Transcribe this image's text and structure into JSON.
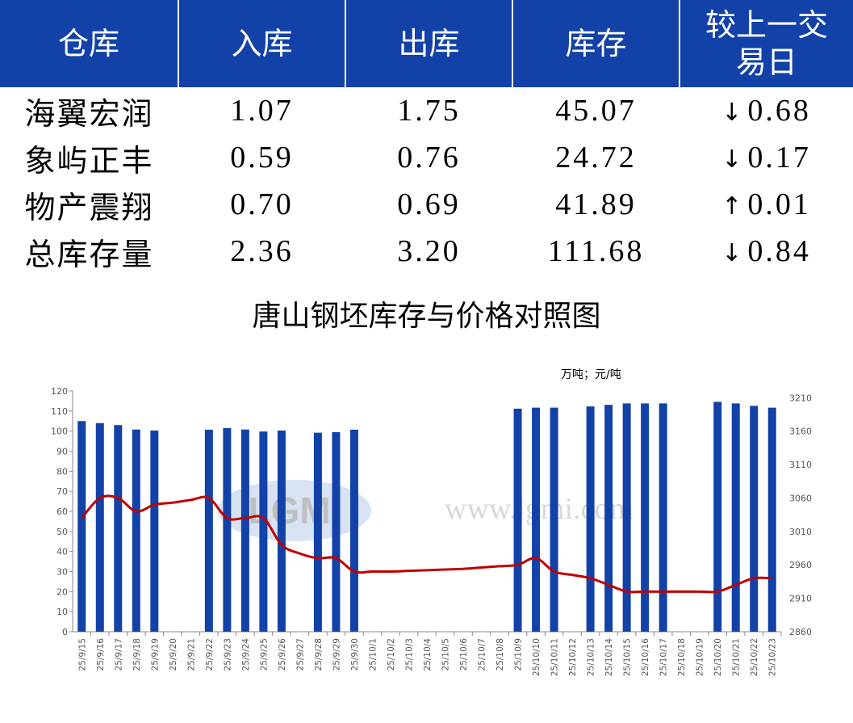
{
  "table": {
    "headers": [
      "仓库",
      "入库",
      "出库",
      "库存",
      "较上一交易日"
    ],
    "rows": [
      {
        "name": "海翼宏润",
        "in": "1.07",
        "out": "1.75",
        "stock": "45.07",
        "dir": "down",
        "arrow": "↓",
        "change": "0.68"
      },
      {
        "name": "象屿正丰",
        "in": "0.59",
        "out": "0.76",
        "stock": "24.72",
        "dir": "down",
        "arrow": "↓",
        "change": "0.17"
      },
      {
        "name": "物产震翔",
        "in": "0.70",
        "out": "0.69",
        "stock": "41.89",
        "dir": "up",
        "arrow": "↑",
        "change": "0.01"
      },
      {
        "name": "总库存量",
        "in": "2.36",
        "out": "3.20",
        "stock": "111.68",
        "dir": "down",
        "arrow": "↓",
        "change": "0.84"
      }
    ]
  },
  "colors": {
    "header_bg": "#1242a8",
    "bar": "#1242a8",
    "line": "#c00000",
    "up": "#ee0000",
    "down": "#0a7a0a"
  },
  "chart_data": {
    "type": "bar+line",
    "title": "唐山钢坯库存与价格对照图",
    "unit_label": "万吨；元/吨",
    "watermark": "www.lgmi.com",
    "categories": [
      "25/9/15",
      "25/9/16",
      "25/9/17",
      "25/9/18",
      "25/9/19",
      "25/9/20",
      "25/9/21",
      "25/9/22",
      "25/9/23",
      "25/9/24",
      "25/9/25",
      "25/9/26",
      "25/9/27",
      "25/9/28",
      "25/9/29",
      "25/9/30",
      "25/10/1",
      "25/10/2",
      "25/10/3",
      "25/10/4",
      "25/10/5",
      "25/10/6",
      "25/10/7",
      "25/10/8",
      "25/10/9",
      "25/10/10",
      "25/10/11",
      "25/10/12",
      "25/10/13",
      "25/10/14",
      "25/10/15",
      "25/10/16",
      "25/10/17",
      "25/10/18",
      "25/10/19",
      "25/10/20",
      "25/10/21",
      "25/10/22",
      "25/10/23"
    ],
    "series": [
      {
        "kind": "bar",
        "axis": "left",
        "values": [
          105,
          104,
          103,
          100.8,
          100.3,
          null,
          null,
          100.7,
          101.5,
          100.8,
          99.8,
          100.3,
          null,
          99.2,
          99.5,
          100.7,
          null,
          null,
          null,
          null,
          null,
          null,
          null,
          null,
          111.2,
          111.7,
          111.7,
          null,
          112.3,
          113.1,
          113.8,
          113.8,
          113.8,
          null,
          null,
          114.6,
          113.8,
          112.6,
          111.68
        ]
      },
      {
        "kind": "line",
        "axis": "right",
        "values": [
          3030,
          3060,
          3060,
          3040,
          3050,
          3053,
          3057,
          3060,
          3030,
          3030,
          3030,
          2990,
          2977,
          2970,
          2970,
          2950,
          2950,
          2950,
          2951,
          2952,
          2953,
          2954,
          2956,
          2958,
          2960,
          2970,
          2950,
          2945,
          2940,
          2930,
          2920,
          2920,
          2920,
          2920,
          2920,
          2920,
          2930,
          2940,
          2940
        ]
      }
    ],
    "left_axis": {
      "min": 0,
      "max": 120,
      "ticks": [
        0,
        10,
        20,
        30,
        40,
        50,
        60,
        70,
        80,
        90,
        100,
        110,
        120
      ]
    },
    "right_axis": {
      "min": 2860,
      "max": 3220,
      "ticks": [
        2860,
        2910,
        2960,
        3010,
        3060,
        3110,
        3160,
        3210
      ]
    },
    "grid": false,
    "legend": "none"
  }
}
